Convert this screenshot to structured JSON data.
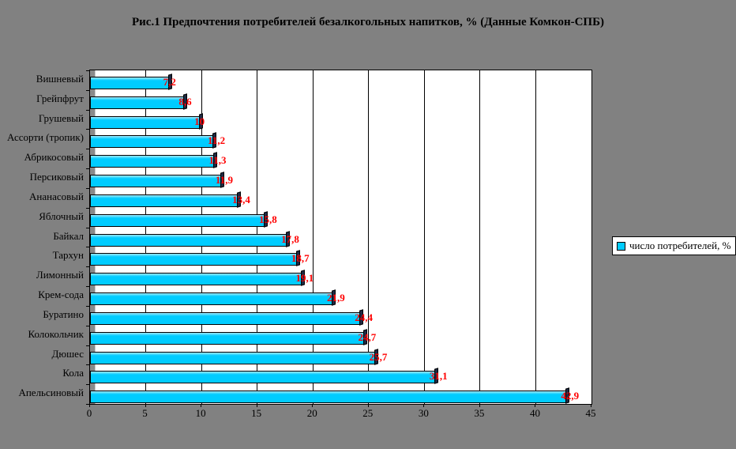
{
  "title": "Рис.1 Предпочтения потребителей безалкогольных напитков, % (Данные Комкон-СПБ)",
  "legend": {
    "label": "число потребителей, %",
    "marker_color": "#00ccff",
    "position": "right"
  },
  "chart_data": {
    "type": "bar",
    "orientation": "horizontal",
    "title": "Рис.1 Предпочтения потребителей безалкогольных напитков, % (Данные Комкон-СПБ)",
    "series_name": "число потребителей, %",
    "categories_top_to_bottom": [
      "Вишневый",
      "Грейпфрут",
      "Грушевый",
      "Ассорти (тропик)",
      "Абрикосовый",
      "Персиковый",
      "Ананасовый",
      "Яблочный",
      "Байкал",
      "Тархун",
      "Лимонный",
      "Крем-сода",
      "Буратино",
      "Колокольчик",
      "Дюшес",
      "Кола",
      "Апельсиновый"
    ],
    "values": [
      7.2,
      8.6,
      10,
      11.2,
      11.3,
      11.9,
      13.4,
      15.8,
      17.8,
      18.7,
      19.1,
      21.9,
      24.4,
      24.7,
      25.7,
      31.1,
      42.9
    ],
    "value_labels": [
      "7,2",
      "8,6",
      "10",
      "11,2",
      "11,3",
      "11,9",
      "13,4",
      "15,8",
      "17,8",
      "18,7",
      "19,1",
      "21,9",
      "24,4",
      "24,7",
      "25,7",
      "31,1",
      "42,9"
    ],
    "xlabel": "",
    "ylabel": "",
    "xlim": [
      0,
      45
    ],
    "x_ticks": [
      0,
      5,
      10,
      15,
      20,
      25,
      30,
      35,
      40,
      45
    ],
    "grid": true,
    "grid_color": "#000000",
    "data_label_color": "#ff0000",
    "bar_color": "#00ccff",
    "bar_shadow_color": "#1f2a44",
    "plot_background": "#ffffff",
    "chart_background": "#818181",
    "legend_position": "right"
  }
}
